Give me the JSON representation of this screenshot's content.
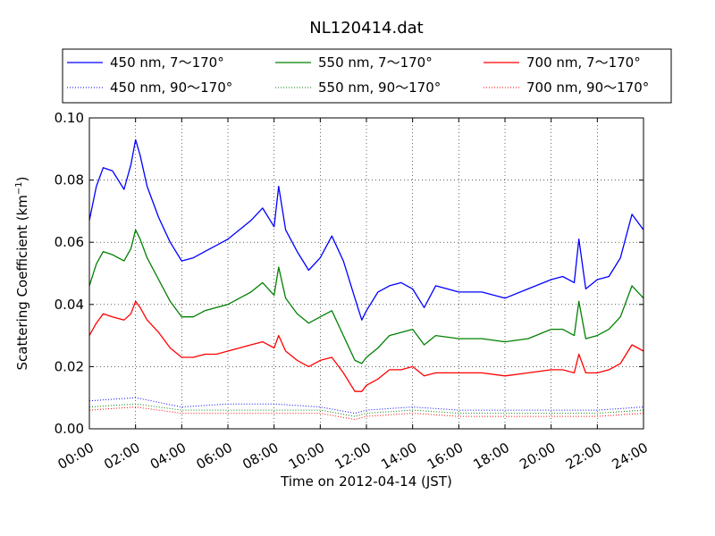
{
  "chart_data": {
    "type": "line",
    "title": "NL120414.dat",
    "xlabel": "Time on 2012-04-14 (JST)",
    "ylabel": "Scattering Coefficient (km",
    "ylabel_sup": "−1",
    "ylabel_tail": ")",
    "xlim": [
      0,
      24
    ],
    "ylim": [
      0.0,
      0.1
    ],
    "x_ticks": [
      0,
      2,
      4,
      6,
      8,
      10,
      12,
      14,
      16,
      18,
      20,
      22,
      24
    ],
    "x_tick_labels": [
      "00:00",
      "02:00",
      "04:00",
      "06:00",
      "08:00",
      "10:00",
      "12:00",
      "14:00",
      "16:00",
      "18:00",
      "20:00",
      "22:00",
      "24:00"
    ],
    "y_ticks": [
      0.0,
      0.02,
      0.04,
      0.06,
      0.08,
      0.1
    ],
    "y_tick_labels": [
      "0.00",
      "0.02",
      "0.04",
      "0.06",
      "0.08",
      "0.10"
    ],
    "grid": true,
    "legend_position": "top",
    "series": [
      {
        "name": "450 nm, 7～170°",
        "color": "#0000ff",
        "style": "solid",
        "x": [
          0.0,
          0.3,
          0.6,
          1.0,
          1.5,
          1.8,
          2.0,
          2.2,
          2.5,
          3.0,
          3.5,
          4.0,
          4.5,
          5.0,
          5.5,
          6.0,
          6.5,
          7.0,
          7.5,
          8.0,
          8.2,
          8.5,
          9.0,
          9.5,
          10.0,
          10.5,
          11.0,
          11.5,
          11.8,
          12.0,
          12.5,
          13.0,
          13.5,
          14.0,
          14.5,
          15.0,
          16.0,
          17.0,
          18.0,
          19.0,
          20.0,
          20.5,
          21.0,
          21.2,
          21.5,
          22.0,
          22.5,
          23.0,
          23.5,
          24.0
        ],
        "y": [
          0.067,
          0.078,
          0.084,
          0.083,
          0.077,
          0.085,
          0.093,
          0.088,
          0.078,
          0.068,
          0.06,
          0.054,
          0.055,
          0.057,
          0.059,
          0.061,
          0.064,
          0.067,
          0.071,
          0.065,
          0.078,
          0.064,
          0.057,
          0.051,
          0.055,
          0.062,
          0.054,
          0.042,
          0.035,
          0.038,
          0.044,
          0.046,
          0.047,
          0.045,
          0.039,
          0.046,
          0.044,
          0.044,
          0.042,
          0.045,
          0.048,
          0.049,
          0.047,
          0.061,
          0.045,
          0.048,
          0.049,
          0.055,
          0.069,
          0.064
        ]
      },
      {
        "name": "450 nm, 90～170°",
        "color": "#0000ff",
        "style": "dotted",
        "x": [
          0,
          2,
          4,
          6,
          8,
          10,
          11.5,
          12,
          14,
          16,
          18,
          20,
          22,
          24
        ],
        "y": [
          0.009,
          0.01,
          0.007,
          0.008,
          0.008,
          0.007,
          0.005,
          0.006,
          0.007,
          0.006,
          0.006,
          0.006,
          0.006,
          0.007
        ]
      },
      {
        "name": "550 nm, 7～170°",
        "color": "#008000",
        "style": "solid",
        "x": [
          0.0,
          0.3,
          0.6,
          1.0,
          1.5,
          1.8,
          2.0,
          2.2,
          2.5,
          3.0,
          3.5,
          4.0,
          4.5,
          5.0,
          5.5,
          6.0,
          6.5,
          7.0,
          7.5,
          8.0,
          8.2,
          8.5,
          9.0,
          9.5,
          10.0,
          10.5,
          11.0,
          11.5,
          11.8,
          12.0,
          12.5,
          13.0,
          13.5,
          14.0,
          14.5,
          15.0,
          16.0,
          17.0,
          18.0,
          19.0,
          20.0,
          20.5,
          21.0,
          21.2,
          21.5,
          22.0,
          22.5,
          23.0,
          23.5,
          24.0
        ],
        "y": [
          0.046,
          0.053,
          0.057,
          0.056,
          0.054,
          0.058,
          0.064,
          0.061,
          0.055,
          0.048,
          0.041,
          0.036,
          0.036,
          0.038,
          0.039,
          0.04,
          0.042,
          0.044,
          0.047,
          0.043,
          0.052,
          0.042,
          0.037,
          0.034,
          0.036,
          0.038,
          0.03,
          0.022,
          0.021,
          0.023,
          0.026,
          0.03,
          0.031,
          0.032,
          0.027,
          0.03,
          0.029,
          0.029,
          0.028,
          0.029,
          0.032,
          0.032,
          0.03,
          0.041,
          0.029,
          0.03,
          0.032,
          0.036,
          0.046,
          0.042
        ]
      },
      {
        "name": "550 nm, 90～170°",
        "color": "#008000",
        "style": "dotted",
        "x": [
          0,
          2,
          4,
          6,
          8,
          10,
          11.5,
          12,
          14,
          16,
          18,
          20,
          22,
          24
        ],
        "y": [
          0.007,
          0.008,
          0.006,
          0.006,
          0.006,
          0.006,
          0.004,
          0.005,
          0.006,
          0.005,
          0.005,
          0.005,
          0.005,
          0.006
        ]
      },
      {
        "name": "700 nm, 7～170°",
        "color": "#ff0000",
        "style": "solid",
        "x": [
          0.0,
          0.3,
          0.6,
          1.0,
          1.5,
          1.8,
          2.0,
          2.2,
          2.5,
          3.0,
          3.5,
          4.0,
          4.5,
          5.0,
          5.5,
          6.0,
          6.5,
          7.0,
          7.5,
          8.0,
          8.2,
          8.5,
          9.0,
          9.5,
          10.0,
          10.5,
          11.0,
          11.5,
          11.8,
          12.0,
          12.5,
          13.0,
          13.5,
          14.0,
          14.5,
          15.0,
          16.0,
          17.0,
          18.0,
          19.0,
          20.0,
          20.5,
          21.0,
          21.2,
          21.5,
          22.0,
          22.5,
          23.0,
          23.5,
          24.0
        ],
        "y": [
          0.03,
          0.034,
          0.037,
          0.036,
          0.035,
          0.037,
          0.041,
          0.039,
          0.035,
          0.031,
          0.026,
          0.023,
          0.023,
          0.024,
          0.024,
          0.025,
          0.026,
          0.027,
          0.028,
          0.026,
          0.03,
          0.025,
          0.022,
          0.02,
          0.022,
          0.023,
          0.018,
          0.012,
          0.012,
          0.014,
          0.016,
          0.019,
          0.019,
          0.02,
          0.017,
          0.018,
          0.018,
          0.018,
          0.017,
          0.018,
          0.019,
          0.019,
          0.018,
          0.024,
          0.018,
          0.018,
          0.019,
          0.021,
          0.027,
          0.025
        ]
      },
      {
        "name": "700 nm, 90～170°",
        "color": "#ff0000",
        "style": "dotted",
        "x": [
          0,
          2,
          4,
          6,
          8,
          10,
          11.5,
          12,
          14,
          16,
          18,
          20,
          22,
          24
        ],
        "y": [
          0.006,
          0.007,
          0.005,
          0.005,
          0.005,
          0.005,
          0.003,
          0.004,
          0.005,
          0.004,
          0.004,
          0.004,
          0.004,
          0.005
        ]
      }
    ]
  }
}
